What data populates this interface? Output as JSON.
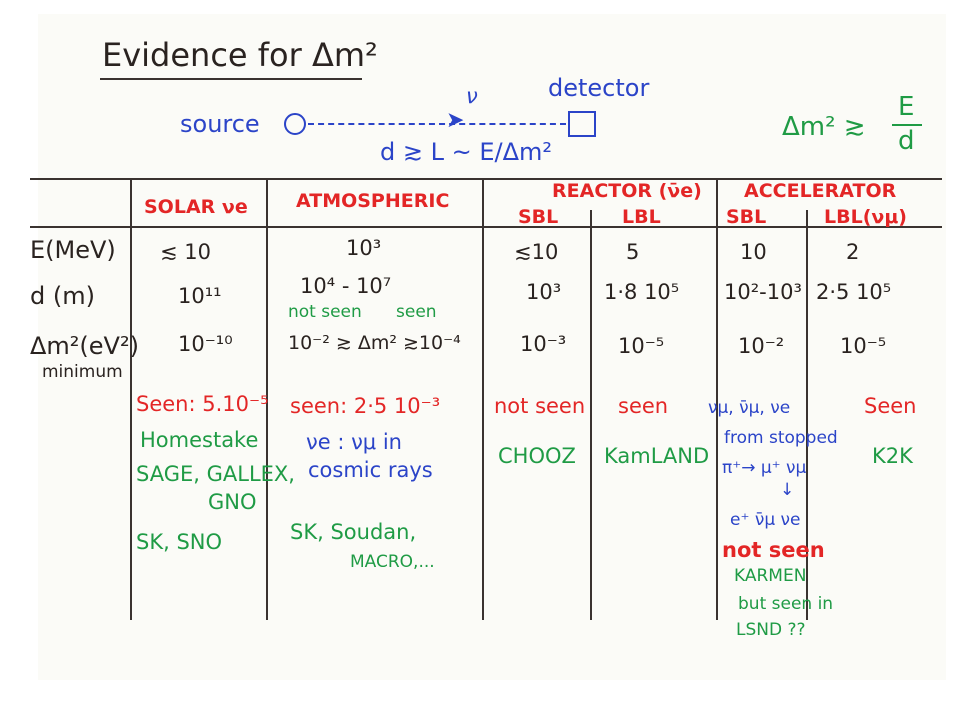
{
  "title": "Evidence for Δm²",
  "diagram": {
    "source_label": "source",
    "neutrino_symbol": "ν",
    "detector_label": "detector",
    "distance_relation": "d ≳ L ~ E/Δm²",
    "rule_lhs": "Δm² ≳",
    "rule_num": "E",
    "rule_den": "d"
  },
  "columns": {
    "solar": "SOLAR νe",
    "atmospheric": "ATMOSPHERIC",
    "reactor": "REACTOR (ν̄e)",
    "accelerator": "ACCELERATOR",
    "sbl": "SBL",
    "lbl": "LBL",
    "lbl_acc": "LBL(νμ)"
  },
  "row_labels": {
    "energy": "E(MeV)",
    "distance": "d (m)",
    "dm2": "Δm²(eV²)",
    "minimum": "minimum"
  },
  "cells": {
    "solar": {
      "E": "≲ 10",
      "d": "10¹¹",
      "dm2": "10⁻¹⁰"
    },
    "atm": {
      "E": "10³",
      "d": "10⁴  -  10⁷",
      "not_seen": "not seen",
      "seen": "seen",
      "dm2": "10⁻² ≳ Δm² ≳10⁻⁴"
    },
    "reactor_sbl": {
      "E": "≲10",
      "d": "10³",
      "dm2": "10⁻³"
    },
    "reactor_lbl": {
      "E": "5",
      "d": "1·8 10⁵",
      "dm2": "10⁻⁵"
    },
    "acc_sbl": {
      "E": "10",
      "d": "10²-10³",
      "dm2": "10⁻²"
    },
    "acc_lbl": {
      "E": "2",
      "d": "2·5 10⁵",
      "dm2": "10⁻⁵"
    }
  },
  "results": {
    "solar_seen": "Seen: 5.10⁻⁵",
    "solar_exp1": "Homestake",
    "solar_exp2": "SAGE, GALLEX,",
    "solar_exp3": "GNO",
    "solar_exp4": "SK, SNO",
    "atm_seen": "seen: 2·5 10⁻³",
    "atm_note1": "νe : νμ  in",
    "atm_note2": "cosmic rays",
    "atm_exp1": "SK, Soudan,",
    "atm_exp2": "MACRO,...",
    "rsbl_result": "not seen",
    "rsbl_exp": "CHOOZ",
    "rlbl_result": "seen",
    "rlbl_exp": "KamLAND",
    "asbl_line1": "νμ, ν̄μ, νe",
    "asbl_line2": "from stopped",
    "asbl_line3": "π⁺→ μ⁺ νμ",
    "asbl_arrow": "↓",
    "asbl_line4": "e⁺ ν̄μ νe",
    "asbl_result": "not seen",
    "asbl_exp": "KARMEN",
    "asbl_note1": "but seen in",
    "asbl_note2": "LSND ??",
    "albl_result": "Seen",
    "albl_exp": "K2K"
  },
  "colors": {
    "ink_black": "#2a2320",
    "ink_blue": "#2b44c8",
    "ink_green": "#1f9b45",
    "ink_red": "#e32626"
  }
}
